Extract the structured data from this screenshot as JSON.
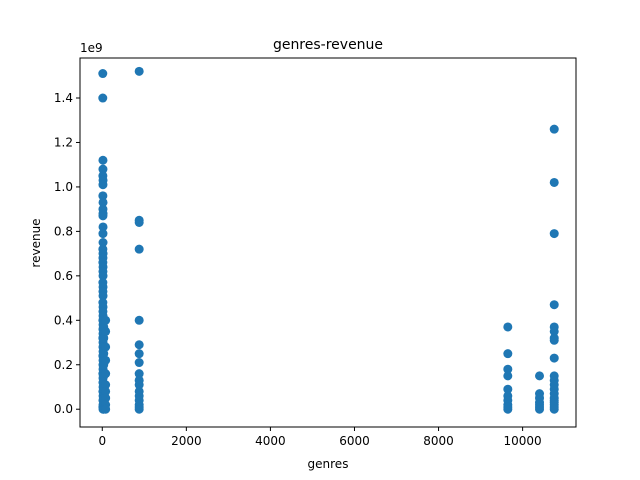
{
  "chart_data": {
    "type": "scatter",
    "title": "genres-revenue",
    "xlabel": "genres",
    "ylabel": "revenue",
    "y_offset_label": "1e9",
    "xlim": [
      -530,
      11270
    ],
    "ylim": [
      -0.08,
      1.58
    ],
    "xticks": [
      0,
      2000,
      4000,
      6000,
      8000,
      10000
    ],
    "yticks": [
      0.0,
      0.2,
      0.4,
      0.6,
      0.8,
      1.0,
      1.2,
      1.4
    ],
    "ytick_labels": [
      "0.0",
      "0.2",
      "0.4",
      "0.6",
      "0.8",
      "1.0",
      "1.2",
      "1.4"
    ],
    "grid": false,
    "marker_color": "#1f77b4",
    "y_unit_scale": 1000000000,
    "series": [
      {
        "points": [
          [
            12,
            1.51
          ],
          [
            12,
            1.4
          ],
          [
            16,
            1.12
          ],
          [
            16,
            1.08
          ],
          [
            14,
            1.05
          ],
          [
            18,
            1.03
          ],
          [
            16,
            1.01
          ],
          [
            14,
            0.96
          ],
          [
            18,
            0.93
          ],
          [
            16,
            0.9
          ],
          [
            18,
            0.88
          ],
          [
            16,
            0.87
          ],
          [
            18,
            0.82
          ],
          [
            16,
            0.79
          ],
          [
            18,
            0.75
          ],
          [
            14,
            0.72
          ],
          [
            18,
            0.7
          ],
          [
            16,
            0.68
          ],
          [
            14,
            0.66
          ],
          [
            18,
            0.64
          ],
          [
            16,
            0.62
          ],
          [
            18,
            0.6
          ],
          [
            14,
            0.57
          ],
          [
            18,
            0.55
          ],
          [
            16,
            0.53
          ],
          [
            18,
            0.51
          ],
          [
            14,
            0.48
          ],
          [
            18,
            0.46
          ],
          [
            16,
            0.44
          ],
          [
            18,
            0.42
          ],
          [
            14,
            0.4
          ],
          [
            18,
            0.38
          ],
          [
            16,
            0.36
          ],
          [
            18,
            0.34
          ],
          [
            14,
            0.32
          ],
          [
            18,
            0.3
          ],
          [
            16,
            0.28
          ],
          [
            18,
            0.26
          ],
          [
            14,
            0.24
          ],
          [
            18,
            0.22
          ],
          [
            16,
            0.2
          ],
          [
            18,
            0.18
          ],
          [
            14,
            0.16
          ],
          [
            18,
            0.14
          ],
          [
            16,
            0.12
          ],
          [
            18,
            0.1
          ],
          [
            14,
            0.08
          ],
          [
            18,
            0.06
          ],
          [
            16,
            0.04
          ],
          [
            18,
            0.02
          ],
          [
            14,
            0.01
          ],
          [
            18,
            0.0
          ],
          [
            35,
            0.37
          ],
          [
            35,
            0.32
          ],
          [
            35,
            0.25
          ],
          [
            35,
            0.2
          ],
          [
            35,
            0.15
          ],
          [
            35,
            0.1
          ],
          [
            35,
            0.05
          ],
          [
            35,
            0.0
          ],
          [
            80,
            0.4
          ],
          [
            80,
            0.35
          ],
          [
            80,
            0.28
          ],
          [
            80,
            0.22
          ],
          [
            80,
            0.16
          ],
          [
            80,
            0.11
          ],
          [
            80,
            0.08
          ],
          [
            80,
            0.05
          ],
          [
            80,
            0.02
          ],
          [
            80,
            0.0
          ],
          [
            878,
            1.52
          ],
          [
            878,
            0.85
          ],
          [
            878,
            0.84
          ],
          [
            878,
            0.72
          ],
          [
            878,
            0.4
          ],
          [
            878,
            0.29
          ],
          [
            878,
            0.25
          ],
          [
            878,
            0.21
          ],
          [
            878,
            0.16
          ],
          [
            878,
            0.13
          ],
          [
            878,
            0.11
          ],
          [
            878,
            0.08
          ],
          [
            878,
            0.06
          ],
          [
            878,
            0.04
          ],
          [
            878,
            0.02
          ],
          [
            878,
            0.01
          ],
          [
            878,
            0.0
          ],
          [
            9648,
            0.37
          ],
          [
            9648,
            0.25
          ],
          [
            9648,
            0.18
          ],
          [
            9648,
            0.15
          ],
          [
            9648,
            0.09
          ],
          [
            9648,
            0.06
          ],
          [
            9648,
            0.04
          ],
          [
            9648,
            0.02
          ],
          [
            9648,
            0.01
          ],
          [
            9648,
            0.0
          ],
          [
            10402,
            0.15
          ],
          [
            10402,
            0.07
          ],
          [
            10402,
            0.05
          ],
          [
            10402,
            0.03
          ],
          [
            10402,
            0.02
          ],
          [
            10402,
            0.01
          ],
          [
            10402,
            0.0
          ],
          [
            10752,
            1.26
          ],
          [
            10752,
            1.02
          ],
          [
            10752,
            0.79
          ],
          [
            10752,
            0.47
          ],
          [
            10752,
            0.37
          ],
          [
            10752,
            0.35
          ],
          [
            10752,
            0.32
          ],
          [
            10752,
            0.31
          ],
          [
            10752,
            0.23
          ],
          [
            10752,
            0.15
          ],
          [
            10752,
            0.13
          ],
          [
            10752,
            0.11
          ],
          [
            10752,
            0.09
          ],
          [
            10752,
            0.07
          ],
          [
            10752,
            0.05
          ],
          [
            10752,
            0.04
          ],
          [
            10752,
            0.03
          ],
          [
            10752,
            0.02
          ],
          [
            10752,
            0.01
          ],
          [
            10752,
            0.0
          ]
        ]
      }
    ]
  }
}
